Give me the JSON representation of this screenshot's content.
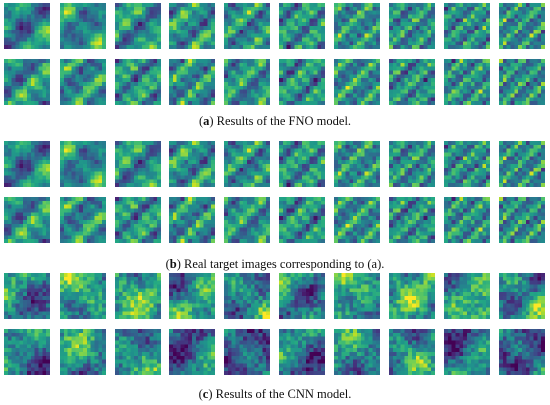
{
  "panels": [
    {
      "id": "fno",
      "label": "a",
      "caption": "Results of the FNO model.",
      "colormap": "viridis",
      "tiles_per_row": 10,
      "rows": 2
    },
    {
      "id": "real",
      "label": "b",
      "caption": "Real target images corresponding to (a).",
      "colormap": "viridis",
      "tiles_per_row": 10,
      "rows": 2
    },
    {
      "id": "cnn",
      "label": "c",
      "caption": "Results of the CNN model.",
      "colormap": "viridis",
      "tiles_per_row": 10,
      "rows": 2
    }
  ]
}
